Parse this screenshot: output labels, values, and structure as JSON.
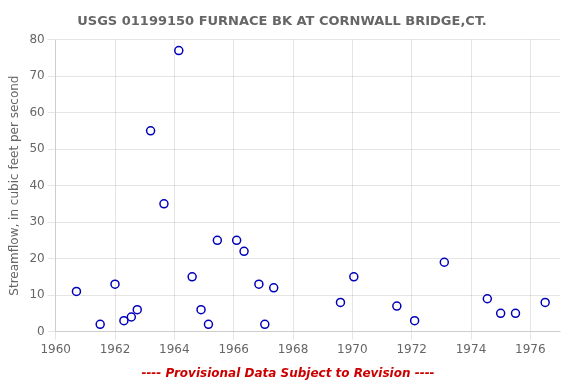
{
  "chart_data": {
    "type": "scatter",
    "title": "USGS 01199150 FURNACE BK AT CORNWALL BRIDGE,CT.",
    "ylabel": "Streamflow, in cubic feet per second",
    "x": [
      1960.7,
      1961.5,
      1962.0,
      1962.3,
      1962.55,
      1962.75,
      1963.2,
      1963.65,
      1964.15,
      1964.6,
      1964.9,
      1965.15,
      1965.45,
      1966.1,
      1966.35,
      1966.85,
      1967.05,
      1967.35,
      1969.6,
      1970.05,
      1971.5,
      1972.1,
      1973.1,
      1974.55,
      1975.0,
      1975.5,
      1976.5
    ],
    "values": [
      11,
      2,
      13,
      3,
      4,
      6,
      55,
      35,
      77,
      15,
      6,
      2,
      25,
      25,
      22,
      13,
      2,
      12,
      8,
      15,
      7,
      3,
      19,
      9,
      5,
      5,
      8
    ],
    "color": "#0000bb",
    "marker": "circle",
    "xlim": [
      1960,
      1977
    ],
    "ylim": [
      0,
      80
    ],
    "xticks": [
      1960,
      1962,
      1964,
      1966,
      1968,
      1970,
      1972,
      1974,
      1976
    ],
    "yticks": [
      0,
      10,
      20,
      30,
      40,
      50,
      60,
      70,
      80
    ],
    "grid": true,
    "annotations": [
      {
        "text": "---- Provisional Data Subject to Revision ----",
        "color": "#cc0000"
      }
    ]
  }
}
